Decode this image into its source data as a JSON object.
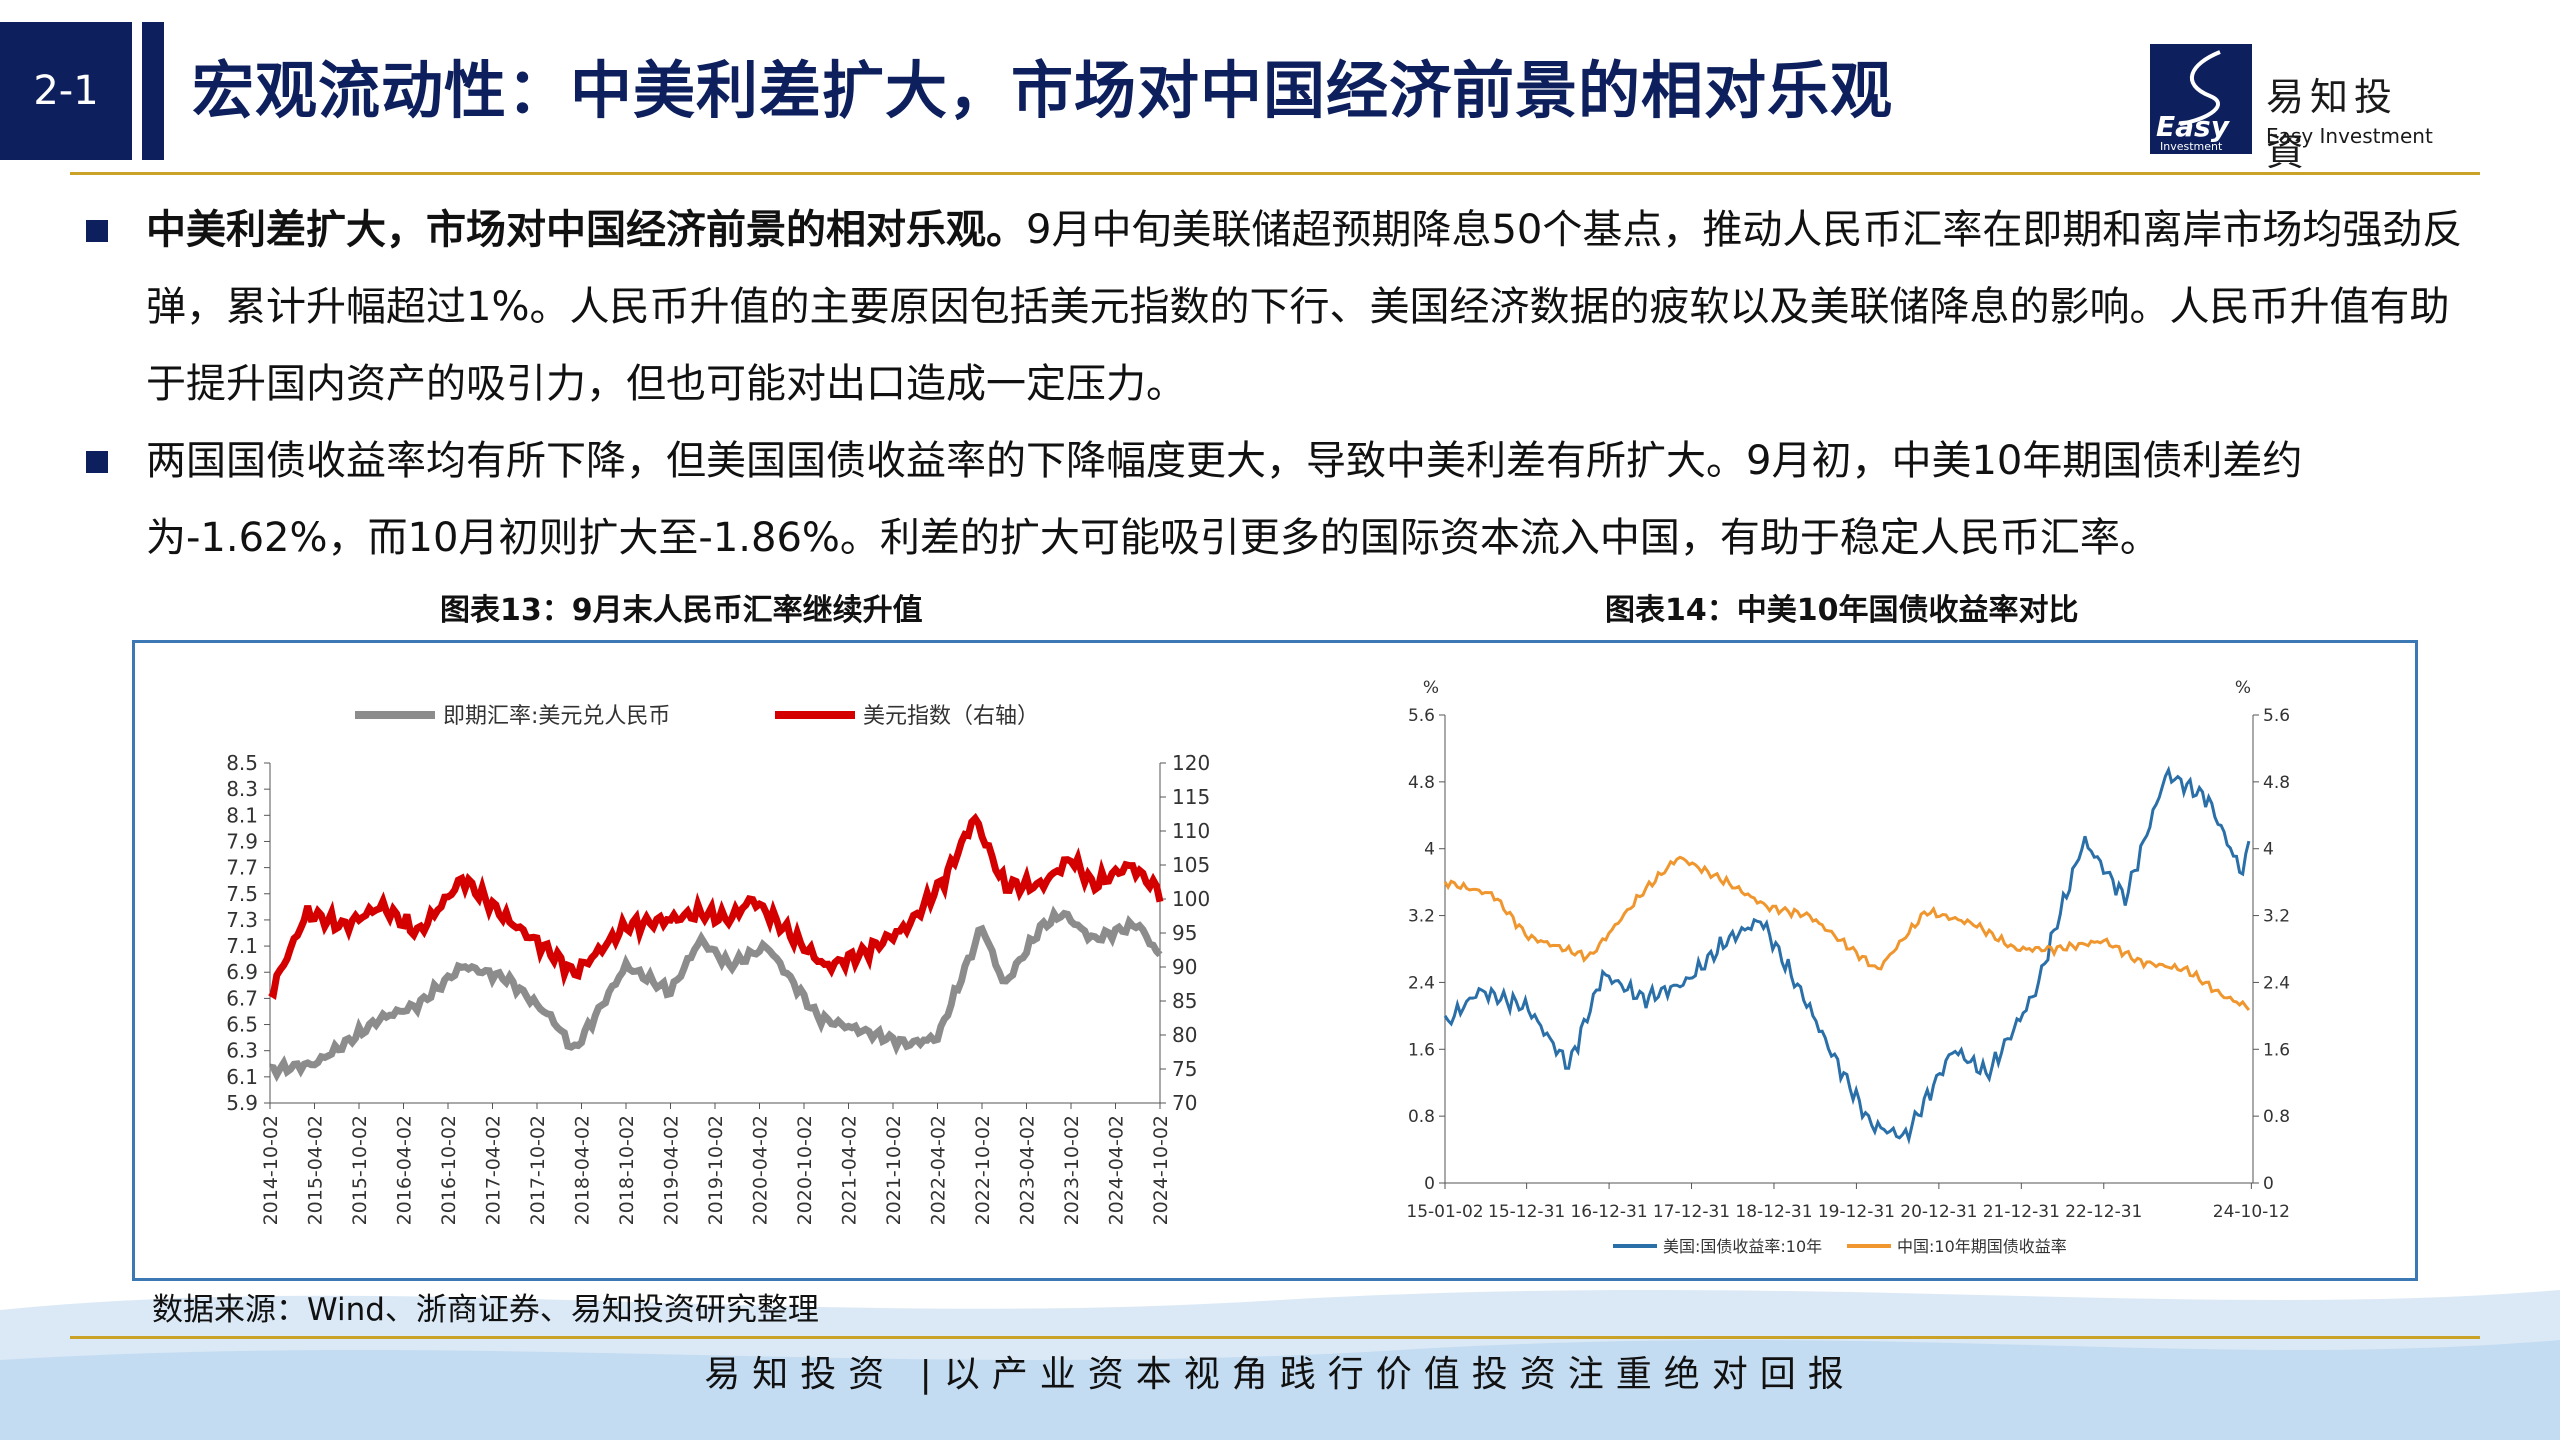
{
  "header": {
    "section": "2-1",
    "title": "宏观流动性：中美利差扩大，市场对中国经济前景的相对乐观",
    "logo_cn": "易知投資",
    "logo_en": "Easy Investment",
    "logo_mark_text": "Easy",
    "logo_mark_sub": "Investment"
  },
  "bullets": [
    {
      "bold": "中美利差扩大，市场对中国经济前景的相对乐观。",
      "text": "9月中旬美联储超预期降息50个基点，推动人民币汇率在即期和离岸市场均强劲反弹，累计升幅超过1%。人民币升值的主要原因包括美元指数的下行、美国经济数据的疲软以及美联储降息的影响。人民币升值有助于提升国内资产的吸引力，但也可能对出口造成一定压力。"
    },
    {
      "bold": "",
      "text": "两国国债收益率均有所下降，但美国国债收益率的下降幅度更大，导致中美利差有所扩大。9月初，中美10年期国债利差约为-1.62%，而10月初则扩大至-1.86%。利差的扩大可能吸引更多的国际资本流入中国，有助于稳定人民币汇率。"
    }
  ],
  "captions": {
    "left": "图表13：9月末人民币汇率继续升值",
    "right": "图表14：中美10年国债收益率对比"
  },
  "source": "数据来源：Wind、浙商证券、易知投资研究整理",
  "slogan": "易知投资 |以产业资本视角践行价值投资注重绝对回报",
  "colors": {
    "navy": "#0d1f5c",
    "gold": "#c9a227",
    "grey_series": "#8c8c8c",
    "red_series": "#d40000",
    "blue_series": "#2a6fa8",
    "orange_series": "#f0962e"
  },
  "chart_data": [
    {
      "type": "line",
      "title": "图表13：9月末人民币汇率继续升值",
      "series": [
        {
          "name": "即期汇率:美元兑人民币",
          "axis": "left",
          "x": [
            "2014-10",
            "2015-04",
            "2015-08",
            "2016-01",
            "2016-06",
            "2016-12",
            "2017-06",
            "2017-12",
            "2018-03",
            "2018-10",
            "2019-04",
            "2019-08",
            "2019-12",
            "2020-05",
            "2020-12",
            "2021-06",
            "2021-12",
            "2022-04",
            "2022-10",
            "2023-01",
            "2023-06",
            "2023-09",
            "2024-01",
            "2024-07",
            "2024-10"
          ],
          "values": [
            6.15,
            6.2,
            6.35,
            6.55,
            6.65,
            6.95,
            6.85,
            6.55,
            6.3,
            6.95,
            6.75,
            7.15,
            6.95,
            7.1,
            6.55,
            6.45,
            6.35,
            6.4,
            7.25,
            6.8,
            7.25,
            7.35,
            7.15,
            7.27,
            7.02
          ]
        },
        {
          "name": "美元指数（右轴）",
          "axis": "right",
          "x": [
            "2014-10",
            "2015-03",
            "2015-08",
            "2016-01",
            "2016-06",
            "2016-12",
            "2017-06",
            "2017-12",
            "2018-03",
            "2018-10",
            "2019-04",
            "2019-08",
            "2019-12",
            "2020-03",
            "2020-06",
            "2021-01",
            "2021-06",
            "2021-12",
            "2022-05",
            "2022-09",
            "2023-01",
            "2023-06",
            "2023-10",
            "2024-01",
            "2024-06",
            "2024-10"
          ],
          "values": [
            86,
            98,
            96,
            99,
            95,
            103,
            97,
            92,
            89,
            96,
            97,
            98,
            97,
            100,
            97,
            90,
            92,
            96,
            103,
            112,
            102,
            102,
            106,
            102,
            105,
            101
          ]
        }
      ],
      "x_ticks": [
        "2014-10-02",
        "2015-04-02",
        "2015-10-02",
        "2016-04-02",
        "2016-10-02",
        "2017-04-02",
        "2017-10-02",
        "2018-04-02",
        "2018-10-02",
        "2019-04-02",
        "2019-10-02",
        "2020-04-02",
        "2020-10-02",
        "2021-04-02",
        "2021-10-02",
        "2022-04-02",
        "2022-10-02",
        "2023-04-02",
        "2023-10-02",
        "2024-04-02",
        "2024-10-02"
      ],
      "y_left_ticks": [
        "8.5",
        "8.3",
        "8.1",
        "7.9",
        "7.7",
        "7.5",
        "7.3",
        "7.1",
        "6.9",
        "6.7",
        "6.5",
        "6.3",
        "6.1",
        "5.9"
      ],
      "y_right_ticks": [
        "120",
        "115",
        "110",
        "105",
        "100",
        "95",
        "90",
        "85",
        "80",
        "75",
        "70"
      ],
      "ylim_left": [
        5.9,
        8.5
      ],
      "ylim_right": [
        70,
        120
      ],
      "legend": "top"
    },
    {
      "type": "line",
      "title": "图表14：中美10年国债收益率对比",
      "series": [
        {
          "name": "美国:国债收益率:10年",
          "axis": "left",
          "x": [
            "2015-01",
            "2015-06",
            "2016-01",
            "2016-07",
            "2016-12",
            "2017-06",
            "2017-12",
            "2018-06",
            "2018-11",
            "2019-06",
            "2019-09",
            "2020-03",
            "2020-08",
            "2021-03",
            "2021-08",
            "2022-03",
            "2022-06",
            "2022-10",
            "2023-04",
            "2023-10",
            "2024-04",
            "2024-09",
            "2024-10"
          ],
          "values": [
            1.9,
            2.3,
            2.1,
            1.4,
            2.5,
            2.2,
            2.4,
            2.9,
            3.15,
            2.1,
            1.6,
            0.7,
            0.55,
            1.6,
            1.3,
            2.3,
            3.1,
            4.1,
            3.4,
            4.9,
            4.6,
            3.7,
            4.05
          ]
        },
        {
          "name": "中国:10年期国债收益率",
          "axis": "left",
          "x": [
            "2015-01",
            "2015-08",
            "2016-01",
            "2016-10",
            "2017-06",
            "2017-11",
            "2018-06",
            "2018-12",
            "2019-06",
            "2020-04",
            "2020-11",
            "2021-06",
            "2021-12",
            "2022-06",
            "2023-01",
            "2023-06",
            "2024-01",
            "2024-06",
            "2024-10"
          ],
          "values": [
            3.6,
            3.45,
            2.95,
            2.7,
            3.5,
            3.9,
            3.6,
            3.3,
            3.2,
            2.55,
            3.25,
            3.1,
            2.8,
            2.8,
            2.9,
            2.65,
            2.55,
            2.25,
            2.1
          ]
        }
      ],
      "x_ticks": [
        "15-01-02",
        "15-12-31",
        "16-12-31",
        "17-12-31",
        "18-12-31",
        "19-12-31",
        "20-12-31",
        "21-12-31",
        "22-12-31",
        "24-10-12"
      ],
      "y_ticks": [
        "5.6",
        "4.8",
        "4",
        "3.2",
        "2.4",
        "1.6",
        "0.8",
        "0"
      ],
      "ylim": [
        0,
        5.6
      ],
      "y_unit": "%",
      "legend": "bottom"
    }
  ]
}
